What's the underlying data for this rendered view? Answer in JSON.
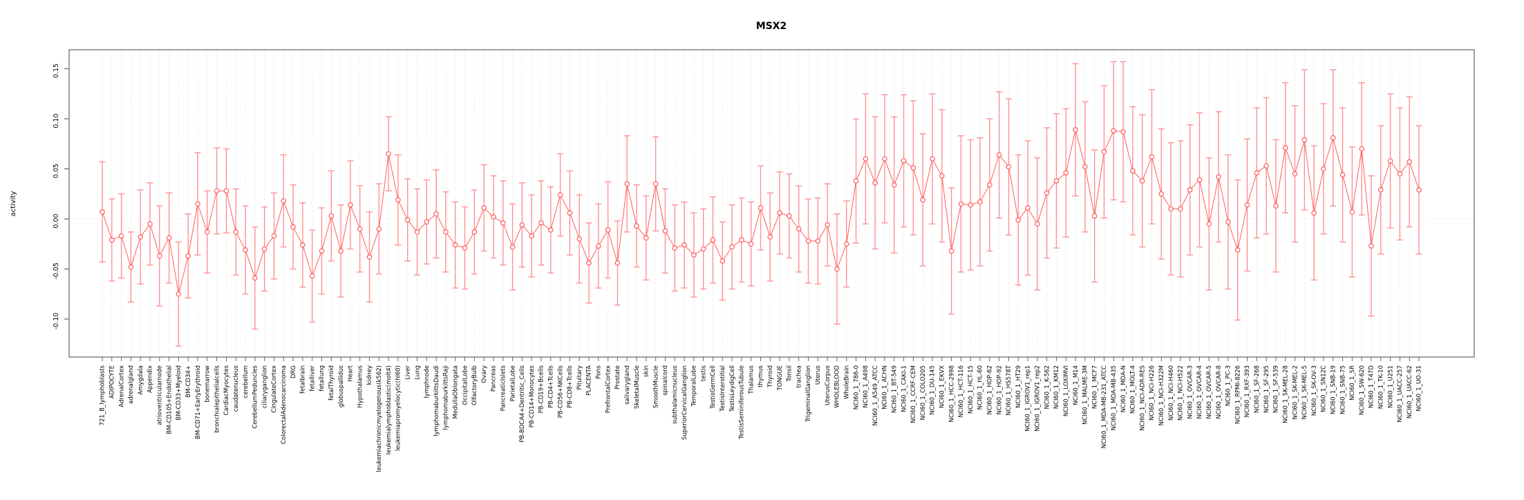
{
  "title": "MSX2",
  "chart_data": {
    "type": "line",
    "title": "MSX2",
    "xlabel": "",
    "ylabel": "activity",
    "ylim": [
      -0.138,
      0.169
    ],
    "yticks": [
      0.15,
      0.1,
      0.05,
      0.0,
      -0.05,
      -0.1
    ],
    "grid": "vertical dotted gridline at every category; horizontal dotted line at y=0",
    "legend_position": "none",
    "marker": "open-circle with symmetric error bars, points connected by line",
    "colors": {
      "line": "#ff5a5a",
      "point_stroke": "#ff5a5a",
      "error_bar": "#ff9090",
      "grid": "#d9d9d9",
      "box": "#808080",
      "tick": "#666666",
      "text": "#000000",
      "background": "#ffffff"
    },
    "categories": [
      "721_B_lymphoblasts",
      "ADIPOCYTE",
      "AdrenalCortex",
      "adrenalgland",
      "Amygdala",
      "Appendix",
      "atrioventricularnode",
      "BM-CD105+Endothelial",
      "BM-CD33+Myeloid",
      "BM-CD34+",
      "BM-CD71+EarlyErythroid",
      "bonemarrow",
      "bronchialepithelialcells",
      "CardiacMyocytes",
      "caudatenucleus",
      "cerebellum",
      "CerebellumPeduncles",
      "ciliaryganglion",
      "CingulateCortex",
      "ColorectalAdenocarcinoma",
      "DRG",
      "fetalbrain",
      "fetalliver",
      "fetallung",
      "fetalThyroid",
      "globuspallidus",
      "Heart",
      "Hypothalamus",
      "kidney",
      "leukemiachronicmyelogenous(k562)",
      "leukemialymphoblastic(molt4)",
      "leukemiapromyelocytic(hl60)",
      "Liver",
      "Lung",
      "lymphnode",
      "lymphomaburkittsDaudi",
      "lymphomaburkittsRaji",
      "MedullaOblongata",
      "OccipitalLobe",
      "OlfactoryBulb",
      "Ovary",
      "Pancreas",
      "PancreaticIslets",
      "ParietalLobe",
      "PB-BDCA4+Dentritic_Cells",
      "PB-CD14+Monocytes",
      "PB-CD19+Bcells",
      "PB-CD4+Tcells",
      "PB-CD56+NKCells",
      "PB-CD8+Tcells",
      "Pituitary",
      "PLACENTA",
      "Pons",
      "PrefrontalCortex",
      "Prostate",
      "salivarygland",
      "SkeletalMuscle",
      "skin",
      "SmoothMuscle",
      "spinalcord",
      "subthalamicnucleus",
      "SuperiorCervicalGanglion",
      "TemporalLobe",
      "testis",
      "TestisGermCell",
      "TestisInterstitial",
      "TestisLeydigCell",
      "TestisSeminiferousTubule",
      "Thalamus",
      "thymus",
      "Thyroid",
      "TONGUE",
      "Tonsil",
      "trachea",
      "TrigeminalGanglion",
      "Uterus",
      "UterusCorpus",
      "WHOLEBLOOD",
      "WholeBrain",
      "NCI60_1_786-0",
      "NCI60_1_A498",
      "NCI60_1_A549_ATCC",
      "NCI60_1_ACHN",
      "NCI60_1_BT-549",
      "NCI60_1_CAKI-1",
      "NCI60_1_CCRF-CEM",
      "NCI60_1_COLO205",
      "NCI60_1_DU-145",
      "NCI60_1_EKVX",
      "NCI60_1_HCC-2998",
      "NCI60_1_HCT-116",
      "NCI60_1_HCT-15",
      "NCI60_1_HL-60",
      "NCI60_1_HOP-62",
      "NCI60_1_HOP-92",
      "NCI60_1_HS578T",
      "NCI60_1_HT29",
      "NCI60_1_IGROV1_rep1",
      "NCI60_1_IGROV1_rep2",
      "NCI60_1_K-562",
      "NCI60_1_KM12",
      "NCI60_1_LOXIMVI",
      "NCI60_1_M14",
      "NCI60_1_MALME-3M",
      "NCI60_1_MCF7",
      "NCI60_1_MDA-MB-231_ATCC",
      "NCI60_1_MDA-MB-435",
      "NCI60_1_MDA-N",
      "NCI60_1_MOLT-4",
      "NCI60_1_NCI-ADR-RES",
      "NCI60_1_NCI-H226",
      "NCI60_1_NCI-H322M",
      "NCI60_1_NCI-H460",
      "NCI60_1_NCI-H522",
      "NCI60_1_OVCAR-3",
      "NCI60_1_OVCAR-4",
      "NCI60_1_OVCAR-5",
      "NCI60_1_OVCAR-8",
      "NCI60_1_PC-3",
      "NCI60_1_RPMI-8226",
      "NCI60_1_RXF-393",
      "NCI60_1_SF-268",
      "NCI60_1_SF-295",
      "NCI60_1_SF-539",
      "NCI60_1_SK-MEL-28",
      "NCI60_1_SK-MEL-2",
      "NCI60_1_SK-MEL-5",
      "NCI60_1_SK-OV-3",
      "NCI60_1_SN12C",
      "NCI60_1_SNB-19",
      "NCI60_1_SNB-75",
      "NCI60_1_SR",
      "NCI60_1_SW-620",
      "NCI60_1_T47D",
      "NCI60_1_TK-10",
      "NCI60_1_U251",
      "NCI60_1_UACC-257",
      "NCI60_1_UACC-62",
      "NCI60_1_UO-31"
    ],
    "series": [
      {
        "name": "activity",
        "values": [
          0.007,
          -0.021,
          -0.017,
          -0.048,
          -0.018,
          -0.005,
          -0.037,
          -0.019,
          -0.075,
          -0.037,
          0.015,
          -0.013,
          0.028,
          0.028,
          -0.013,
          -0.031,
          -0.059,
          -0.03,
          -0.017,
          0.018,
          -0.008,
          -0.026,
          -0.057,
          -0.032,
          0.003,
          -0.032,
          0.014,
          -0.01,
          -0.038,
          -0.01,
          0.065,
          0.019,
          -0.001,
          -0.013,
          -0.003,
          0.005,
          -0.013,
          -0.026,
          -0.029,
          -0.013,
          0.011,
          0.002,
          -0.004,
          -0.028,
          -0.006,
          -0.017,
          -0.004,
          -0.011,
          0.024,
          0.006,
          -0.02,
          -0.044,
          -0.027,
          -0.011,
          -0.044,
          0.035,
          -0.007,
          -0.019,
          0.035,
          -0.012,
          -0.029,
          -0.026,
          -0.036,
          -0.03,
          -0.021,
          -0.042,
          -0.028,
          -0.021,
          -0.025,
          0.011,
          -0.018,
          0.006,
          0.003,
          -0.01,
          -0.022,
          -0.022,
          -0.006,
          -0.05,
          -0.025,
          0.038,
          0.06,
          0.036,
          0.06,
          0.034,
          0.058,
          0.051,
          0.019,
          0.06,
          0.043,
          -0.032,
          0.015,
          0.014,
          0.017,
          0.034,
          0.064,
          0.052,
          -0.001,
          0.011,
          -0.005,
          0.026,
          0.038,
          0.046,
          0.089,
          0.052,
          0.003,
          0.067,
          0.088,
          0.087,
          0.048,
          0.038,
          0.062,
          0.025,
          0.01,
          0.01,
          0.029,
          0.039,
          -0.005,
          0.042,
          -0.003,
          -0.031,
          0.014,
          0.046,
          0.053,
          0.013,
          0.071,
          0.045,
          0.079,
          0.006,
          0.05,
          0.081,
          0.044,
          0.007,
          0.07,
          -0.027,
          0.029,
          0.058,
          0.045,
          0.057,
          0.029
        ],
        "error_half_width": [
          0.05,
          0.041,
          0.042,
          0.035,
          0.047,
          0.041,
          0.05,
          0.045,
          0.052,
          0.042,
          0.051,
          0.041,
          0.043,
          0.042,
          0.043,
          0.044,
          0.051,
          0.042,
          0.043,
          0.046,
          0.042,
          0.042,
          0.046,
          0.043,
          0.045,
          0.046,
          0.044,
          0.043,
          0.045,
          0.045,
          0.037,
          0.045,
          0.041,
          0.043,
          0.042,
          0.044,
          0.04,
          0.043,
          0.041,
          0.042,
          0.043,
          0.041,
          0.042,
          0.043,
          0.042,
          0.041,
          0.042,
          0.043,
          0.041,
          0.042,
          0.044,
          0.04,
          0.042,
          0.048,
          0.042,
          0.048,
          0.041,
          0.042,
          0.047,
          0.042,
          0.043,
          0.043,
          0.042,
          0.04,
          0.043,
          0.039,
          0.042,
          0.042,
          0.042,
          0.042,
          0.044,
          0.041,
          0.042,
          0.043,
          0.042,
          0.043,
          0.041,
          0.055,
          0.043,
          0.062,
          0.065,
          0.066,
          0.064,
          0.068,
          0.066,
          0.067,
          0.066,
          0.065,
          0.066,
          0.063,
          0.068,
          0.065,
          0.064,
          0.066,
          0.063,
          0.068,
          0.065,
          0.067,
          0.066,
          0.065,
          0.067,
          0.064,
          0.066,
          0.065,
          0.066,
          0.066,
          0.069,
          0.07,
          0.064,
          0.066,
          0.067,
          0.065,
          0.066,
          0.068,
          0.065,
          0.067,
          0.066,
          0.065,
          0.067,
          0.07,
          0.066,
          0.065,
          0.068,
          0.066,
          0.065,
          0.068,
          0.07,
          0.067,
          0.065,
          0.068,
          0.067,
          0.065,
          0.066,
          0.07,
          0.064,
          0.067,
          0.066,
          0.065,
          0.064
        ]
      }
    ]
  }
}
